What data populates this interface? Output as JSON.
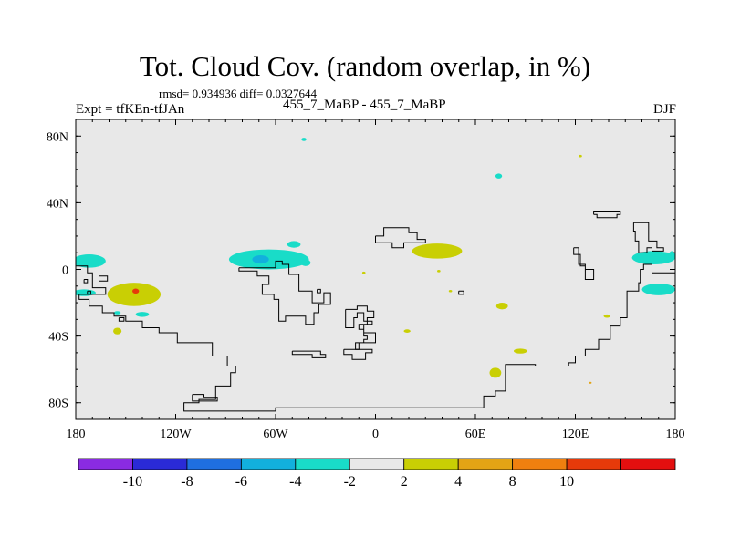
{
  "header": {
    "title": "Tot. Cloud Cov. (random overlap, in %)",
    "stats": "rmsd= 0.934936 diff= 0.0327644",
    "experiment": "Expt = tfKEn-tfJAn",
    "center_label": "455_7_MaBP - 455_7_MaBP",
    "season": "DJF"
  },
  "colors": {
    "background": "#e8e8e8",
    "coast": "#000000",
    "levels": [
      "#8a2be2",
      "#2a2ad6",
      "#1f6fe0",
      "#12b0dd",
      "#19dcc8",
      "#e8e8e8",
      "#c9cf04",
      "#e3a415",
      "#f0800f",
      "#e63a0a",
      "#e30f0f"
    ]
  },
  "chart_data": {
    "type": "heatmap",
    "projection": "cylindrical-equidistant",
    "xlim": [
      -180,
      180
    ],
    "ylim": [
      -90,
      90
    ],
    "x_ticks": [
      {
        "value": -180,
        "label": "180"
      },
      {
        "value": -120,
        "label": "120W"
      },
      {
        "value": -60,
        "label": "60W"
      },
      {
        "value": 0,
        "label": "0"
      },
      {
        "value": 60,
        "label": "60E"
      },
      {
        "value": 120,
        "label": "120E"
      },
      {
        "value": 180,
        "label": "180"
      }
    ],
    "y_ticks": [
      {
        "value": 80,
        "label": "80N"
      },
      {
        "value": 40,
        "label": "40N"
      },
      {
        "value": 0,
        "label": "0"
      },
      {
        "value": -40,
        "label": "40S"
      },
      {
        "value": -80,
        "label": "80S"
      }
    ],
    "colorbar": {
      "levels": [
        "-10",
        "-8",
        "-6",
        "-4",
        "-2",
        "2",
        "4",
        "8",
        "10"
      ]
    },
    "anomaly_regions": [
      {
        "lon": -172,
        "lat": 5,
        "rlon": 10,
        "rlat": 4,
        "level": 4
      },
      {
        "lon": -175,
        "lat": -14,
        "rlon": 7,
        "rlat": 2,
        "level": 4
      },
      {
        "lon": -145,
        "lat": -15,
        "rlon": 16,
        "rlat": 7,
        "level": 6
      },
      {
        "lon": -144,
        "lat": -13,
        "rlon": 2,
        "rlat": 1.5,
        "level": 9
      },
      {
        "lon": -140,
        "lat": -27,
        "rlon": 4,
        "rlat": 1.5,
        "level": 4
      },
      {
        "lon": -155,
        "lat": -26,
        "rlon": 2,
        "rlat": 1,
        "level": 4
      },
      {
        "lon": -155,
        "lat": -37,
        "rlon": 2.5,
        "rlat": 2,
        "level": 6
      },
      {
        "lon": -64,
        "lat": 6,
        "rlon": 24,
        "rlat": 6,
        "level": 4
      },
      {
        "lon": -69,
        "lat": 6,
        "rlon": 5,
        "rlat": 2.5,
        "level": 3
      },
      {
        "lon": -49,
        "lat": 15,
        "rlon": 4,
        "rlat": 2,
        "level": 4
      },
      {
        "lon": -42,
        "lat": 4,
        "rlon": 3,
        "rlat": 2,
        "level": 4
      },
      {
        "lon": -43,
        "lat": 78,
        "rlon": 1.5,
        "rlat": 1,
        "level": 4
      },
      {
        "lon": 37,
        "lat": 11,
        "rlon": 15,
        "rlat": 4.5,
        "level": 6
      },
      {
        "lon": -7,
        "lat": -2,
        "rlon": 1,
        "rlat": 0.7,
        "level": 6
      },
      {
        "lon": 38,
        "lat": -1,
        "rlon": 1,
        "rlat": 0.7,
        "level": 6
      },
      {
        "lon": 45,
        "lat": -13,
        "rlon": 1,
        "rlat": 0.7,
        "level": 6
      },
      {
        "lon": 19,
        "lat": -37,
        "rlon": 2,
        "rlat": 1,
        "level": 6
      },
      {
        "lon": 76,
        "lat": -22,
        "rlon": 3.5,
        "rlat": 2,
        "level": 6
      },
      {
        "lon": 74,
        "lat": 56,
        "rlon": 2,
        "rlat": 1.5,
        "level": 4
      },
      {
        "lon": 87,
        "lat": -49,
        "rlon": 4,
        "rlat": 1.5,
        "level": 6
      },
      {
        "lon": 72,
        "lat": -62,
        "rlon": 3.5,
        "rlat": 3,
        "level": 6
      },
      {
        "lon": 123,
        "lat": 68,
        "rlon": 1,
        "rlat": 0.7,
        "level": 6
      },
      {
        "lon": 139,
        "lat": -28,
        "rlon": 2,
        "rlat": 1,
        "level": 6
      },
      {
        "lon": 129,
        "lat": -68,
        "rlon": 0.8,
        "rlat": 0.6,
        "level": 7
      },
      {
        "lon": 167,
        "lat": 7,
        "rlon": 13,
        "rlat": 4,
        "level": 4
      },
      {
        "lon": 170,
        "lat": -12,
        "rlon": 10,
        "rlat": 3.5,
        "level": 4
      },
      {
        "lon": 178,
        "lat": 8,
        "rlon": 2,
        "rlat": 3,
        "level": 4
      }
    ],
    "coastlines": [
      [
        [
          -180,
          2
        ],
        [
          -173,
          2
        ],
        [
          -173,
          -2
        ],
        [
          -170,
          -2
        ],
        [
          -170,
          -11
        ],
        [
          -162,
          -11
        ],
        [
          -162,
          -15
        ],
        [
          -178,
          -15
        ],
        [
          -178,
          -18
        ],
        [
          -172,
          -18
        ],
        [
          -172,
          -22
        ],
        [
          -164,
          -22
        ],
        [
          -164,
          -26
        ],
        [
          -157,
          -26
        ],
        [
          -157,
          -28
        ],
        [
          -150,
          -28
        ],
        [
          -150,
          -31
        ],
        [
          -140,
          -31
        ],
        [
          -140,
          -35
        ],
        [
          -130,
          -35
        ],
        [
          -130,
          -38
        ],
        [
          -119,
          -38
        ],
        [
          -119,
          -44
        ],
        [
          -98,
          -44
        ],
        [
          -98,
          -52
        ],
        [
          -89,
          -52
        ],
        [
          -89,
          -58
        ],
        [
          -84,
          -58
        ],
        [
          -84,
          -62
        ],
        [
          -87,
          -62
        ],
        [
          -87,
          -70
        ],
        [
          -96,
          -70
        ],
        [
          -96,
          -78
        ],
        [
          -106,
          -78
        ],
        [
          -106,
          -80
        ],
        [
          -115,
          -80
        ],
        [
          -115,
          -85
        ],
        [
          -60,
          -85
        ],
        [
          -60,
          -83
        ],
        [
          65,
          -83
        ],
        [
          65,
          -76
        ],
        [
          72,
          -76
        ],
        [
          72,
          -73
        ],
        [
          78,
          -73
        ],
        [
          78,
          -57
        ],
        [
          96,
          -57
        ],
        [
          96,
          -58
        ],
        [
          116,
          -58
        ],
        [
          116,
          -56
        ],
        [
          120,
          -56
        ],
        [
          120,
          -52
        ],
        [
          126,
          -52
        ],
        [
          126,
          -48
        ],
        [
          134,
          -48
        ],
        [
          134,
          -42
        ],
        [
          141,
          -42
        ],
        [
          141,
          -34
        ],
        [
          147,
          -34
        ],
        [
          147,
          -29
        ],
        [
          151,
          -29
        ],
        [
          151,
          -13
        ],
        [
          158,
          -13
        ],
        [
          158,
          -8
        ],
        [
          159,
          -8
        ],
        [
          159,
          0
        ],
        [
          161,
          0
        ],
        [
          161,
          3
        ],
        [
          166,
          3
        ],
        [
          166,
          -2
        ],
        [
          180,
          -2
        ]
      ],
      [
        [
          -166,
          -4
        ],
        [
          -161,
          -4
        ],
        [
          -161,
          -7
        ],
        [
          -166,
          -7
        ],
        [
          -166,
          -4
        ]
      ],
      [
        [
          -110,
          -75
        ],
        [
          -103,
          -75
        ],
        [
          -103,
          -77
        ],
        [
          -95,
          -77
        ],
        [
          -95,
          -79
        ],
        [
          -110,
          -79
        ],
        [
          -110,
          -75
        ]
      ],
      [
        [
          -82,
          1
        ],
        [
          -60,
          1
        ],
        [
          -60,
          5
        ],
        [
          -56,
          5
        ],
        [
          -56,
          3
        ],
        [
          -52,
          3
        ],
        [
          -52,
          -3
        ],
        [
          -46,
          -3
        ],
        [
          -46,
          -13
        ],
        [
          -38,
          -13
        ],
        [
          -38,
          -20
        ],
        [
          -31,
          -20
        ],
        [
          -31,
          -14
        ],
        [
          -27,
          -14
        ],
        [
          -27,
          -21
        ],
        [
          -34,
          -21
        ],
        [
          -34,
          -26
        ],
        [
          -37,
          -26
        ],
        [
          -37,
          -33
        ],
        [
          -42,
          -33
        ],
        [
          -42,
          -28
        ],
        [
          -54,
          -28
        ],
        [
          -54,
          -31
        ],
        [
          -58,
          -31
        ],
        [
          -58,
          -18
        ],
        [
          -61,
          -18
        ],
        [
          -61,
          -15
        ],
        [
          -68,
          -15
        ],
        [
          -68,
          -9
        ],
        [
          -64,
          -9
        ],
        [
          -64,
          -4
        ],
        [
          -71,
          -4
        ],
        [
          -71,
          -1
        ],
        [
          -82,
          -1
        ],
        [
          -82,
          1
        ]
      ],
      [
        [
          -35,
          -12
        ],
        [
          -33,
          -12
        ],
        [
          -33,
          -14
        ],
        [
          -35,
          -14
        ],
        [
          -35,
          -12
        ]
      ],
      [
        [
          -18,
          -24
        ],
        [
          -11,
          -24
        ],
        [
          -11,
          -22
        ],
        [
          -5,
          -22
        ],
        [
          -5,
          -25
        ],
        [
          -1,
          -25
        ],
        [
          -1,
          -29
        ],
        [
          -5,
          -29
        ],
        [
          -5,
          -33
        ],
        [
          -10,
          -33
        ],
        [
          -10,
          -36
        ],
        [
          -7,
          -36
        ],
        [
          -7,
          -38
        ],
        [
          0,
          -38
        ],
        [
          0,
          -44
        ],
        [
          -10,
          -44
        ],
        [
          -10,
          -48
        ],
        [
          -12,
          -48
        ],
        [
          -12,
          -44
        ],
        [
          -7,
          -44
        ],
        [
          -7,
          -42
        ],
        [
          -5,
          -42
        ],
        [
          -5,
          -40
        ],
        [
          -7,
          -40
        ],
        [
          -7,
          -33
        ],
        [
          -2,
          -33
        ],
        [
          -2,
          -31
        ],
        [
          -7,
          -31
        ],
        [
          -7,
          -26
        ],
        [
          -11,
          -26
        ],
        [
          -11,
          -29
        ],
        [
          -13,
          -29
        ],
        [
          -13,
          -35
        ],
        [
          -18,
          -35
        ],
        [
          -18,
          -24
        ]
      ],
      [
        [
          0,
          20
        ],
        [
          5,
          20
        ],
        [
          5,
          25
        ],
        [
          20,
          25
        ],
        [
          20,
          22
        ],
        [
          25,
          22
        ],
        [
          25,
          18
        ],
        [
          30,
          18
        ],
        [
          30,
          16
        ],
        [
          17,
          16
        ],
        [
          17,
          13
        ],
        [
          10,
          13
        ],
        [
          10,
          16
        ],
        [
          0,
          16
        ],
        [
          0,
          20
        ]
      ],
      [
        [
          -50,
          -49
        ],
        [
          -33,
          -49
        ],
        [
          -33,
          -51
        ],
        [
          -30,
          -51
        ],
        [
          -30,
          -53
        ],
        [
          -38,
          -53
        ],
        [
          -38,
          -51
        ],
        [
          -50,
          -51
        ],
        [
          -50,
          -49
        ]
      ],
      [
        [
          -19,
          -48
        ],
        [
          -2,
          -48
        ],
        [
          -2,
          -50
        ],
        [
          -6,
          -50
        ],
        [
          -6,
          -54
        ],
        [
          -14,
          -54
        ],
        [
          -14,
          -51
        ],
        [
          -19,
          -51
        ],
        [
          -19,
          -48
        ]
      ],
      [
        [
          131,
          33
        ],
        [
          133,
          33
        ],
        [
          133,
          31
        ],
        [
          145,
          31
        ],
        [
          145,
          33
        ],
        [
          147,
          33
        ],
        [
          147,
          35
        ],
        [
          131,
          35
        ],
        [
          131,
          33
        ]
      ],
      [
        [
          155,
          28
        ],
        [
          164,
          28
        ],
        [
          164,
          17
        ],
        [
          169,
          17
        ],
        [
          169,
          13
        ],
        [
          173,
          13
        ],
        [
          173,
          11
        ],
        [
          166,
          11
        ],
        [
          166,
          13
        ],
        [
          163,
          13
        ],
        [
          163,
          10
        ],
        [
          158,
          10
        ],
        [
          158,
          17
        ],
        [
          156,
          17
        ],
        [
          156,
          23
        ],
        [
          155,
          23
        ],
        [
          155,
          28
        ]
      ],
      [
        [
          119,
          13
        ],
        [
          122,
          13
        ],
        [
          122,
          3
        ],
        [
          126,
          3
        ],
        [
          126,
          -6
        ],
        [
          131,
          -6
        ],
        [
          131,
          0
        ],
        [
          126,
          0
        ],
        [
          126,
          2
        ],
        [
          123,
          2
        ],
        [
          123,
          9
        ],
        [
          119,
          9
        ],
        [
          119,
          13
        ]
      ],
      [
        [
          -175,
          -6
        ],
        [
          -173,
          -6
        ],
        [
          -173,
          -8
        ],
        [
          -175,
          -8
        ],
        [
          -175,
          -6
        ]
      ],
      [
        [
          -173,
          -13
        ],
        [
          -171,
          -13
        ],
        [
          -171,
          -15
        ],
        [
          -173,
          -15
        ],
        [
          -173,
          -13
        ]
      ],
      [
        [
          -154,
          -29
        ],
        [
          -151,
          -29
        ],
        [
          -151,
          -31
        ],
        [
          -154,
          -31
        ],
        [
          -154,
          -29
        ]
      ],
      [
        [
          50,
          -13
        ],
        [
          53,
          -13
        ],
        [
          53,
          -15
        ],
        [
          50,
          -15
        ],
        [
          50,
          -13
        ]
      ]
    ]
  }
}
